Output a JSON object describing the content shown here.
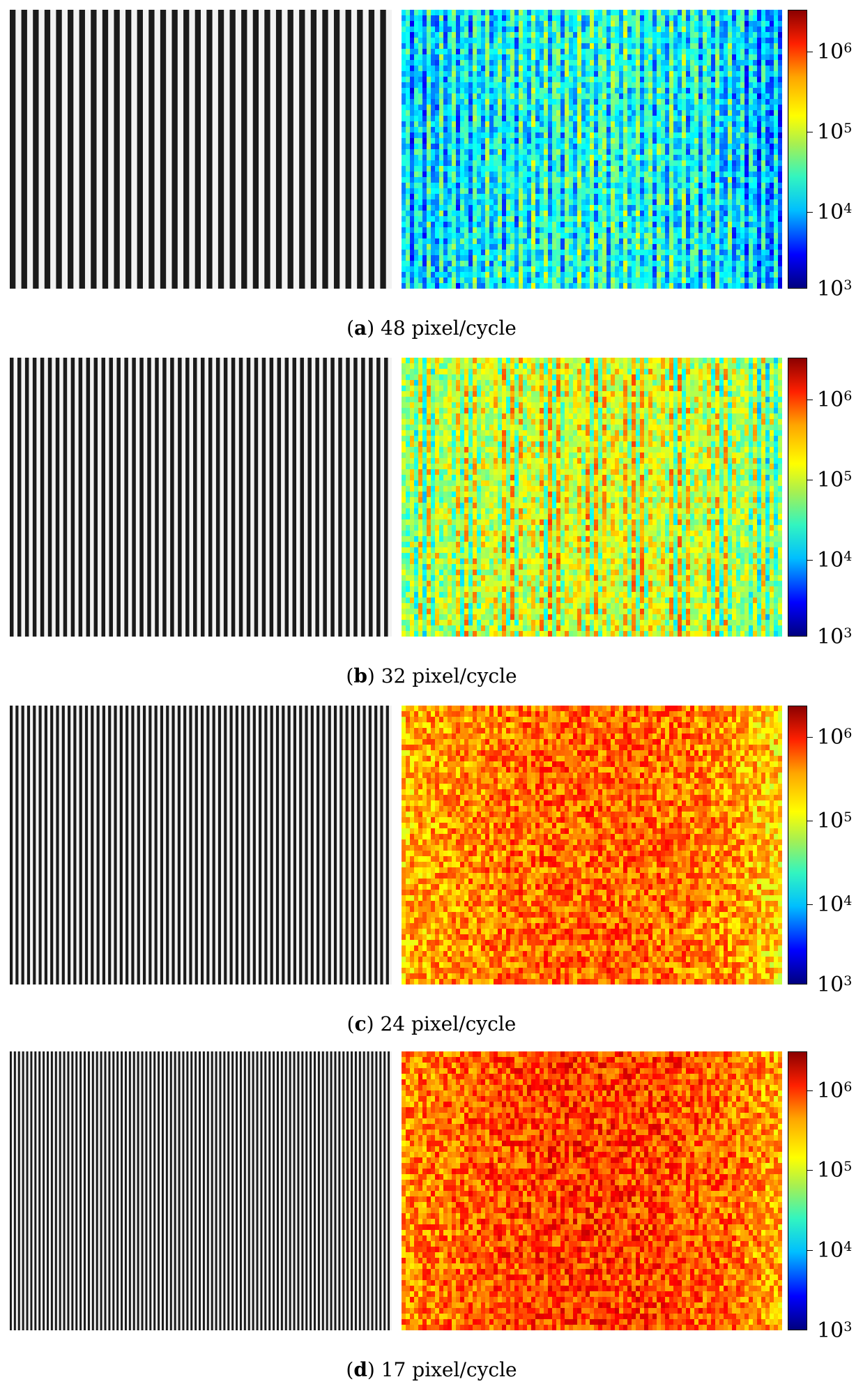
{
  "panels": [
    {
      "letter": "a",
      "caption_text": "48 pixel/cycle",
      "stripes": 33,
      "phase": 0,
      "mean_level": 0.32,
      "colorbar_labels": [
        "10",
        "10",
        "10",
        "10"
      ],
      "colorbar_exps": [
        "6",
        "5",
        "4",
        "3"
      ]
    },
    {
      "letter": "b",
      "caption_text": "32 pixel/cycle",
      "stripes": 50,
      "phase": 0,
      "mean_level": 0.52,
      "colorbar_labels": [
        "10",
        "10",
        "10",
        "10"
      ],
      "colorbar_exps": [
        "6",
        "5",
        "4",
        "3"
      ]
    },
    {
      "letter": "c",
      "caption_text": "24 pixel/cycle",
      "stripes": 66,
      "phase": 0,
      "mean_level": 0.7,
      "colorbar_labels": [
        "10",
        "10",
        "10",
        "10"
      ],
      "colorbar_exps": [
        "6",
        "5",
        "4",
        "3"
      ]
    },
    {
      "letter": "d",
      "caption_text": "17 pixel/cycle",
      "stripes": 93,
      "phase": 0,
      "mean_level": 0.74,
      "colorbar_labels": [
        "10",
        "10",
        "10",
        "10"
      ],
      "colorbar_exps": [
        "6",
        "5",
        "4",
        "3"
      ]
    }
  ],
  "colors": {
    "fringe_dark": "#1a1a1a",
    "fringe_light": "#f2f2f2"
  }
}
